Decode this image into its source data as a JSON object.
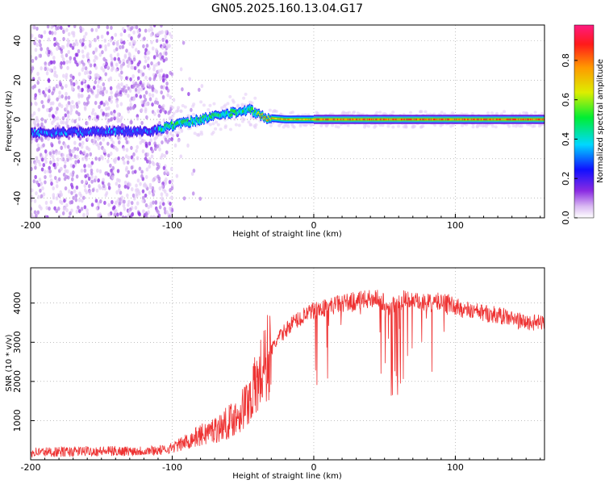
{
  "title": "GN05.2025.160.13.04.G17",
  "chart_data": [
    {
      "type": "heatmap",
      "xlabel": "Height of straight line (km)",
      "ylabel": "Frequency (Hz)",
      "xlim": [
        -200,
        163
      ],
      "ylim": [
        -50,
        48
      ],
      "xticks": [
        "-200",
        "-100",
        "0",
        "100"
      ],
      "yticks": [
        "-40",
        "-20",
        "0",
        "20",
        "40"
      ],
      "colorbar": {
        "label": "Normalized spectral amplitude",
        "range": [
          0,
          0.98
        ],
        "ticks": [
          "0.0",
          "0.2",
          "0.4",
          "0.6",
          "0.8"
        ]
      },
      "ridge": {
        "description_points": [
          {
            "x": -200,
            "y": -7
          },
          {
            "x": -150,
            "y": -6
          },
          {
            "x": -115,
            "y": -6
          },
          {
            "x": -100,
            "y": -3
          },
          {
            "x": -80,
            "y": 0
          },
          {
            "x": -60,
            "y": 3
          },
          {
            "x": -45,
            "y": 5
          },
          {
            "x": -35,
            "y": 1
          },
          {
            "x": -20,
            "y": 0
          },
          {
            "x": 0,
            "y": 0
          },
          {
            "x": 163,
            "y": 0
          }
        ]
      },
      "grid": true
    },
    {
      "type": "line",
      "xlabel": "Height of straight line (km)",
      "ylabel": "SNR (10 * v/v)",
      "xlim": [
        -200,
        163
      ],
      "ylim": [
        0,
        4900
      ],
      "xticks": [
        "-200",
        "-100",
        "0",
        "100"
      ],
      "yticks": [
        "1000",
        "2000",
        "3000",
        "4000"
      ],
      "color": "#ee3333",
      "grid": true,
      "series": [
        {
          "x": [
            -200,
            -180,
            -160,
            -140,
            -120,
            -105,
            -95,
            -85,
            -75,
            -65,
            -55,
            -48,
            -42,
            -36,
            -30,
            -25,
            -20,
            -15,
            -10,
            -5,
            0,
            10,
            20,
            30,
            40,
            45,
            50,
            55,
            60,
            65,
            70,
            75,
            80,
            85,
            90,
            95,
            100,
            110,
            120,
            130,
            140,
            150,
            163
          ],
          "y": [
            200,
            200,
            220,
            220,
            230,
            250,
            380,
            550,
            700,
            850,
            1100,
            1400,
            1800,
            2300,
            2800,
            3100,
            3300,
            3500,
            3600,
            3700,
            3800,
            3900,
            4000,
            4050,
            4100,
            4150,
            4000,
            3900,
            4050,
            4100,
            4050,
            4000,
            4000,
            4000,
            4050,
            4000,
            3900,
            3800,
            3750,
            3700,
            3600,
            3500,
            3500
          ]
        }
      ]
    }
  ]
}
